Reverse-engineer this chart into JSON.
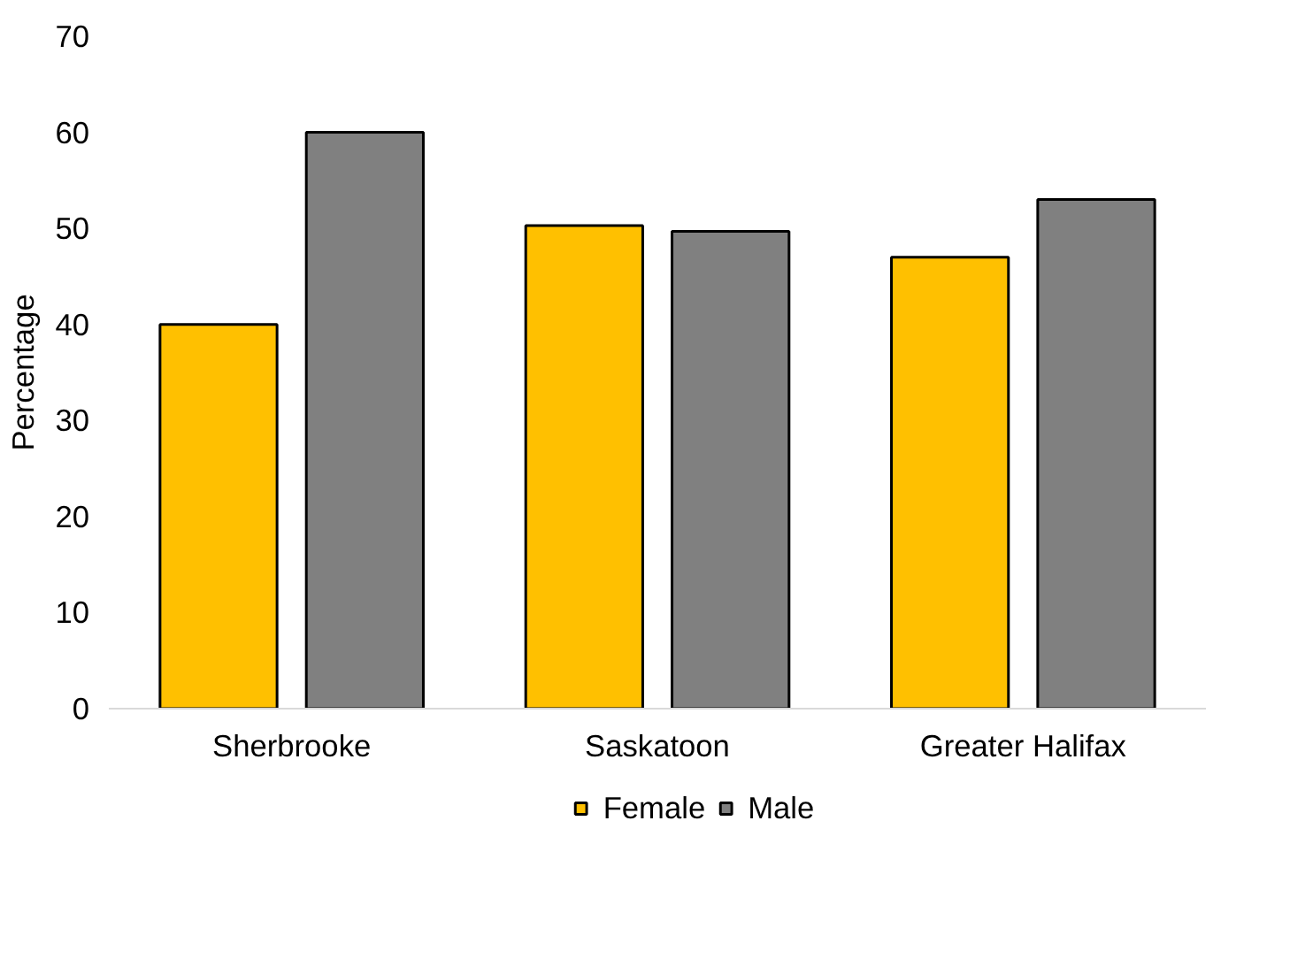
{
  "chart_data": {
    "type": "bar",
    "ylabel": "Percentage",
    "categories": [
      "Sherbrooke",
      "Saskatoon",
      "Greater Halifax"
    ],
    "series": [
      {
        "name": "Female",
        "color": "#ffc000",
        "values": [
          40,
          50.3,
          47
        ]
      },
      {
        "name": "Male",
        "color": "#808080",
        "values": [
          60,
          49.7,
          53
        ]
      }
    ],
    "ylim": [
      0,
      70
    ],
    "yticks": [
      0,
      10,
      20,
      30,
      40,
      50,
      60,
      70
    ],
    "grid": false,
    "legend": "bottom"
  }
}
